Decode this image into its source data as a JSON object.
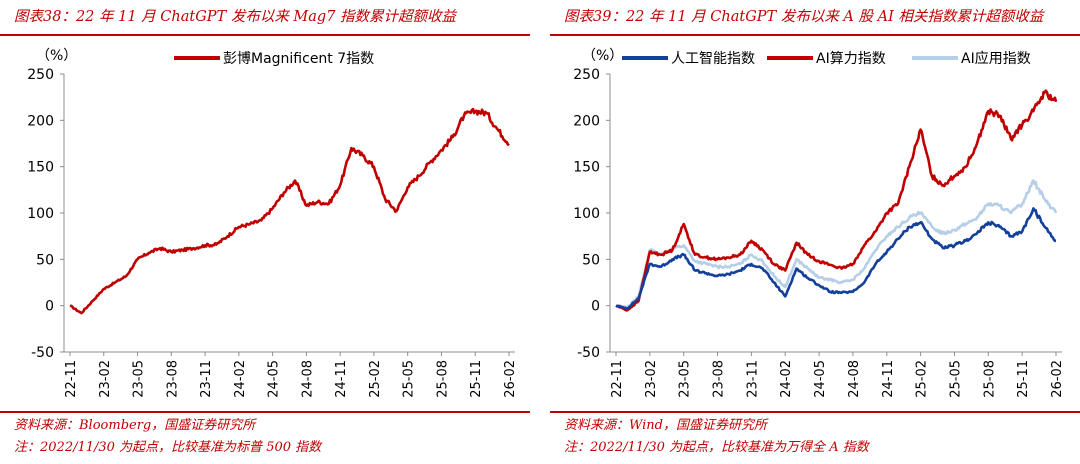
{
  "charts": [
    {
      "title": "图表38：22 年 11 月 ChatGPT 发布以来 Mag7 指数累计超额收益",
      "source": "资料来源：Bloomberg，国盛证券研究所",
      "note": "注：2022/11/30 为起点，比较基准为标普 500 指数"
    },
    {
      "title": "图表39：22 年 11 月 ChatGPT 发布以来 A 股 AI 相关指数累计超额收益",
      "source": "资料来源：Wind，国盛证券研究所",
      "note": "注：2022/11/30 为起点，比较基准为万得全 A 指数"
    }
  ],
  "colors": {
    "title_red": "#c00000",
    "series_red": "#c00000",
    "series_navy": "#12409a",
    "series_lightblue": "#b6cfe8"
  },
  "chart_data": [
    {
      "type": "line",
      "ylabel": "（%）",
      "ylim": [
        -50,
        250
      ],
      "yticks": [
        -50,
        0,
        50,
        100,
        150,
        200,
        250
      ],
      "xticks": [
        "22-11",
        "23-02",
        "23-05",
        "23-08",
        "23-11",
        "24-02",
        "24-05",
        "24-08",
        "24-11",
        "25-02",
        "25-05",
        "25-08",
        "25-11",
        "26-02"
      ],
      "legend_position": "top-center",
      "grid": false,
      "series": [
        {
          "name": "彭博Magnificent 7指数",
          "color": "#c00000",
          "points": [
            [
              "22-11",
              0
            ],
            [
              "22-12",
              -8
            ],
            [
              "23-01",
              5
            ],
            [
              "23-02",
              18
            ],
            [
              "23-03",
              25
            ],
            [
              "23-04",
              32
            ],
            [
              "23-05",
              50
            ],
            [
              "23-06",
              57
            ],
            [
              "23-07",
              62
            ],
            [
              "23-08",
              58
            ],
            [
              "23-09",
              60
            ],
            [
              "23-10",
              62
            ],
            [
              "23-11",
              65
            ],
            [
              "23-12",
              66
            ],
            [
              "24-01",
              75
            ],
            [
              "24-02",
              85
            ],
            [
              "24-03",
              88
            ],
            [
              "24-04",
              92
            ],
            [
              "24-05",
              105
            ],
            [
              "24-06",
              122
            ],
            [
              "24-07",
              135
            ],
            [
              "24-08",
              108
            ],
            [
              "24-09",
              112
            ],
            [
              "24-10",
              110
            ],
            [
              "24-11",
              130
            ],
            [
              "24-12",
              170
            ],
            [
              "25-01",
              162
            ],
            [
              "25-02",
              150
            ],
            [
              "25-03",
              115
            ],
            [
              "25-04",
              102
            ],
            [
              "25-05",
              128
            ],
            [
              "25-06",
              140
            ],
            [
              "25-07",
              155
            ],
            [
              "25-08",
              168
            ],
            [
              "25-09",
              182
            ],
            [
              "25-10",
              205
            ],
            [
              "25-11",
              210
            ],
            [
              "25-12",
              208
            ],
            [
              "26-01",
              190
            ],
            [
              "26-02",
              175
            ]
          ]
        }
      ]
    },
    {
      "type": "line",
      "ylabel": "（%）",
      "ylim": [
        -50,
        250
      ],
      "yticks": [
        -50,
        0,
        50,
        100,
        150,
        200,
        250
      ],
      "xticks": [
        "22-11",
        "23-02",
        "23-05",
        "23-08",
        "23-11",
        "24-02",
        "24-05",
        "24-08",
        "24-11",
        "25-02",
        "25-05",
        "25-08",
        "25-11",
        "26-02"
      ],
      "legend_position": "top",
      "grid": false,
      "series": [
        {
          "name": "人工智能指数",
          "color": "#12409a",
          "points": [
            [
              "22-11",
              0
            ],
            [
              "22-12",
              -3
            ],
            [
              "23-01",
              8
            ],
            [
              "23-02",
              45
            ],
            [
              "23-03",
              42
            ],
            [
              "23-04",
              50
            ],
            [
              "23-05",
              55
            ],
            [
              "23-06",
              38
            ],
            [
              "23-07",
              35
            ],
            [
              "23-08",
              32
            ],
            [
              "23-09",
              34
            ],
            [
              "23-10",
              38
            ],
            [
              "23-11",
              45
            ],
            [
              "23-12",
              40
            ],
            [
              "24-01",
              25
            ],
            [
              "24-02",
              10
            ],
            [
              "24-03",
              40
            ],
            [
              "24-04",
              30
            ],
            [
              "24-05",
              22
            ],
            [
              "24-06",
              15
            ],
            [
              "24-07",
              14
            ],
            [
              "24-08",
              15
            ],
            [
              "24-09",
              25
            ],
            [
              "24-10",
              45
            ],
            [
              "24-11",
              58
            ],
            [
              "24-12",
              72
            ],
            [
              "25-01",
              85
            ],
            [
              "25-02",
              90
            ],
            [
              "25-03",
              72
            ],
            [
              "25-04",
              62
            ],
            [
              "25-05",
              65
            ],
            [
              "25-06",
              70
            ],
            [
              "25-07",
              78
            ],
            [
              "25-08",
              90
            ],
            [
              "25-09",
              85
            ],
            [
              "25-10",
              75
            ],
            [
              "25-11",
              80
            ],
            [
              "25-12",
              105
            ],
            [
              "26-01",
              85
            ],
            [
              "26-02",
              70
            ]
          ]
        },
        {
          "name": "AI算力指数",
          "color": "#c00000",
          "points": [
            [
              "22-11",
              0
            ],
            [
              "22-12",
              -5
            ],
            [
              "23-01",
              5
            ],
            [
              "23-02",
              58
            ],
            [
              "23-03",
              55
            ],
            [
              "23-04",
              60
            ],
            [
              "23-05",
              88
            ],
            [
              "23-06",
              55
            ],
            [
              "23-07",
              52
            ],
            [
              "23-08",
              50
            ],
            [
              "23-09",
              52
            ],
            [
              "23-10",
              55
            ],
            [
              "23-11",
              70
            ],
            [
              "23-12",
              60
            ],
            [
              "24-01",
              45
            ],
            [
              "24-02",
              38
            ],
            [
              "24-03",
              68
            ],
            [
              "24-04",
              55
            ],
            [
              "24-05",
              48
            ],
            [
              "24-06",
              44
            ],
            [
              "24-07",
              40
            ],
            [
              "24-08",
              45
            ],
            [
              "24-09",
              65
            ],
            [
              "24-10",
              80
            ],
            [
              "24-11",
              100
            ],
            [
              "24-12",
              110
            ],
            [
              "25-01",
              150
            ],
            [
              "25-02",
              190
            ],
            [
              "25-03",
              140
            ],
            [
              "25-04",
              130
            ],
            [
              "25-05",
              140
            ],
            [
              "25-06",
              150
            ],
            [
              "25-07",
              175
            ],
            [
              "25-08",
              210
            ],
            [
              "25-09",
              205
            ],
            [
              "25-10",
              180
            ],
            [
              "25-11",
              195
            ],
            [
              "25-12",
              210
            ],
            [
              "26-01",
              230
            ],
            [
              "26-02",
              220
            ]
          ]
        },
        {
          "name": "AI应用指数",
          "color": "#b6cfe8",
          "points": [
            [
              "22-11",
              0
            ],
            [
              "22-12",
              -2
            ],
            [
              "23-01",
              10
            ],
            [
              "23-02",
              60
            ],
            [
              "23-03",
              55
            ],
            [
              "23-04",
              62
            ],
            [
              "23-05",
              65
            ],
            [
              "23-06",
              48
            ],
            [
              "23-07",
              45
            ],
            [
              "23-08",
              42
            ],
            [
              "23-09",
              42
            ],
            [
              "23-10",
              45
            ],
            [
              "23-11",
              55
            ],
            [
              "23-12",
              48
            ],
            [
              "24-01",
              32
            ],
            [
              "24-02",
              20
            ],
            [
              "24-03",
              50
            ],
            [
              "24-04",
              40
            ],
            [
              "24-05",
              30
            ],
            [
              "24-06",
              28
            ],
            [
              "24-07",
              25
            ],
            [
              "24-08",
              28
            ],
            [
              "24-09",
              40
            ],
            [
              "24-10",
              60
            ],
            [
              "24-11",
              75
            ],
            [
              "24-12",
              85
            ],
            [
              "25-01",
              95
            ],
            [
              "25-02",
              100
            ],
            [
              "25-03",
              85
            ],
            [
              "25-04",
              78
            ],
            [
              "25-05",
              82
            ],
            [
              "25-06",
              88
            ],
            [
              "25-07",
              95
            ],
            [
              "25-08",
              110
            ],
            [
              "25-09",
              108
            ],
            [
              "25-10",
              100
            ],
            [
              "25-11",
              110
            ],
            [
              "25-12",
              135
            ],
            [
              "26-01",
              115
            ],
            [
              "26-02",
              100
            ]
          ]
        }
      ]
    }
  ]
}
